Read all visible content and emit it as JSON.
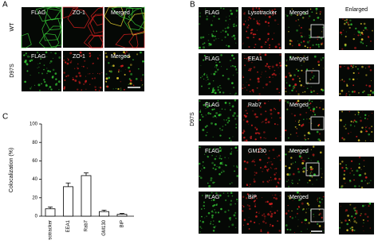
{
  "panels": {
    "A": {
      "label": "A",
      "columns": [
        "FLAG",
        "ZO-1",
        "Merged"
      ],
      "rows": [
        "WT",
        "D97S"
      ]
    },
    "B": {
      "label": "B",
      "side_label": "D97S",
      "flag": "FLAG",
      "merged": "Merged",
      "stains": [
        "Lysotracker",
        "EEA1",
        "Rab7",
        "GM130",
        "BiP"
      ],
      "enlarged": "Enlarged"
    },
    "C": {
      "label": "C"
    }
  },
  "chart_data": {
    "type": "bar",
    "y_label": "Colocalization (%)",
    "categories": [
      "Lysotracker",
      "EEA1",
      "Rab7",
      "GM130",
      "BiP"
    ],
    "values": [
      8,
      32,
      44,
      5,
      2
    ],
    "errors": [
      2,
      4,
      3,
      1.5,
      1
    ],
    "color": "#ffffff",
    "ylim": [
      0,
      100
    ],
    "yticks": [
      0,
      20,
      40,
      60,
      80,
      100
    ]
  }
}
